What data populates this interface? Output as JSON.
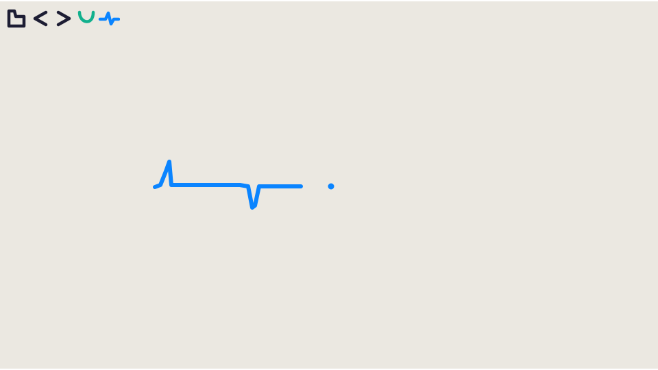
{
  "toolbar": {
    "buttons": [
      {
        "id": "new-page",
        "icon": "page-icon",
        "color": "#1d1d33"
      },
      {
        "id": "undo",
        "icon": "chevron-left-icon",
        "color": "#1d1d33"
      },
      {
        "id": "redo",
        "icon": "chevron-right-icon",
        "color": "#1d1d33"
      },
      {
        "id": "curve-tool",
        "icon": "curve-icon",
        "color": "#12b08d"
      },
      {
        "id": "pulse-tool",
        "icon": "pulse-icon",
        "color": "#0a84ff"
      }
    ]
  },
  "canvas": {
    "background": "#ebe8e1",
    "stroke_color": "#0a84ff"
  }
}
